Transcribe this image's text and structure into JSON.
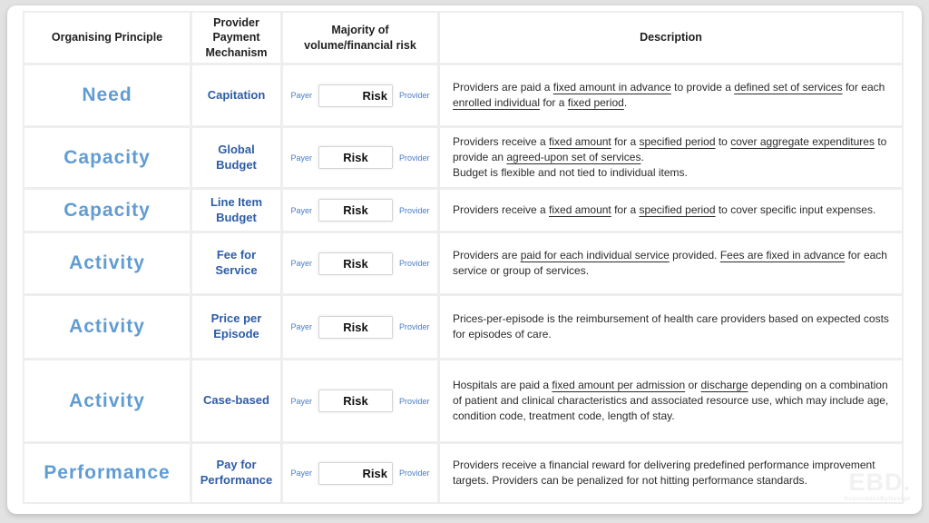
{
  "colors": {
    "page_background": "#e2e2e2",
    "card_background": "#ffffff",
    "grid_line": "#eeeeee",
    "principle_text": "#619CD3",
    "mechanism_text": "#2E5DA6",
    "payer_provider_text": "#4A7CC7",
    "header_text": "#1f1f1f",
    "description_text": "#2b2b2b",
    "risk_box_border": "#d4d4d4"
  },
  "header": {
    "columns": [
      "Organising Principle",
      "Provider\nPayment\nMechanism",
      "Majority of\nvolume/financial risk",
      "Description"
    ]
  },
  "risk_scale": {
    "left_label": "Payer",
    "right_label": "Provider",
    "box_label": "Risk"
  },
  "rows": [
    {
      "principle": "Need",
      "mechanism": "Capitation",
      "risk_position": "provider",
      "description": [
        {
          "text": "Providers are paid a ",
          "underline": false
        },
        {
          "text": "fixed amount in advance",
          "underline": true
        },
        {
          "text": " to provide a ",
          "underline": false
        },
        {
          "text": "defined set of services",
          "underline": true
        },
        {
          "text": " for each ",
          "underline": false
        },
        {
          "text": "enrolled individual",
          "underline": true
        },
        {
          "text": " for a ",
          "underline": false
        },
        {
          "text": "fixed period",
          "underline": true
        },
        {
          "text": ".",
          "underline": false
        }
      ]
    },
    {
      "principle": "Capacity",
      "mechanism": "Global\nBudget",
      "risk_position": "center",
      "description": [
        {
          "text": "Providers receive a ",
          "underline": false
        },
        {
          "text": "fixed amount",
          "underline": true
        },
        {
          "text": " for a ",
          "underline": false
        },
        {
          "text": "specified period",
          "underline": true
        },
        {
          "text": " to ",
          "underline": false
        },
        {
          "text": "cover aggregate expenditures",
          "underline": true
        },
        {
          "text": " to provide an ",
          "underline": false
        },
        {
          "text": "agreed-upon set of services",
          "underline": true
        },
        {
          "text": ".\nBudget is flexible and not tied to individual items.",
          "underline": false
        }
      ]
    },
    {
      "principle": "Capacity",
      "mechanism": "Line Item\nBudget",
      "risk_position": "center",
      "description": [
        {
          "text": "Providers receive a ",
          "underline": false
        },
        {
          "text": "fixed amount",
          "underline": true
        },
        {
          "text": " for a ",
          "underline": false
        },
        {
          "text": "specified period",
          "underline": true
        },
        {
          "text": " to cover specific input expenses.",
          "underline": false
        }
      ]
    },
    {
      "principle": "Activity",
      "mechanism": "Fee for\nService",
      "risk_position": "center",
      "description": [
        {
          "text": "Providers are ",
          "underline": false
        },
        {
          "text": "paid for each individual service",
          "underline": true
        },
        {
          "text": " provided. ",
          "underline": false
        },
        {
          "text": "Fees are fixed in advance",
          "underline": true
        },
        {
          "text": " for each service or group of services.",
          "underline": false
        }
      ]
    },
    {
      "principle": "Activity",
      "mechanism": "Price per\nEpisode",
      "risk_position": "center",
      "description": [
        {
          "text": "Prices-per-episode is the reimbursement of health care providers based on expected costs for episodes of care.",
          "underline": false
        }
      ]
    },
    {
      "principle": "Activity",
      "mechanism": "Case-based",
      "risk_position": "center",
      "description": [
        {
          "text": "Hospitals are paid a ",
          "underline": false
        },
        {
          "text": "fixed amount per admission",
          "underline": true
        },
        {
          "text": " or ",
          "underline": false
        },
        {
          "text": "discharge",
          "underline": true
        },
        {
          "text": " depending on a combination of patient and clinical characteristics and associated resource use, which may include age, condition code, treatment code, length of stay.",
          "underline": false
        }
      ]
    },
    {
      "principle": "Performance",
      "mechanism": "Pay for\nPerformance",
      "risk_position": "provider",
      "description": [
        {
          "text": "Providers receive a financial reward for delivering predefined performance improvement targets. Providers can be penalized for not hitting performance standards.",
          "underline": false
        }
      ]
    }
  ],
  "watermark": {
    "logo": "EBD.",
    "tagline": "EconomicsByDesign"
  }
}
